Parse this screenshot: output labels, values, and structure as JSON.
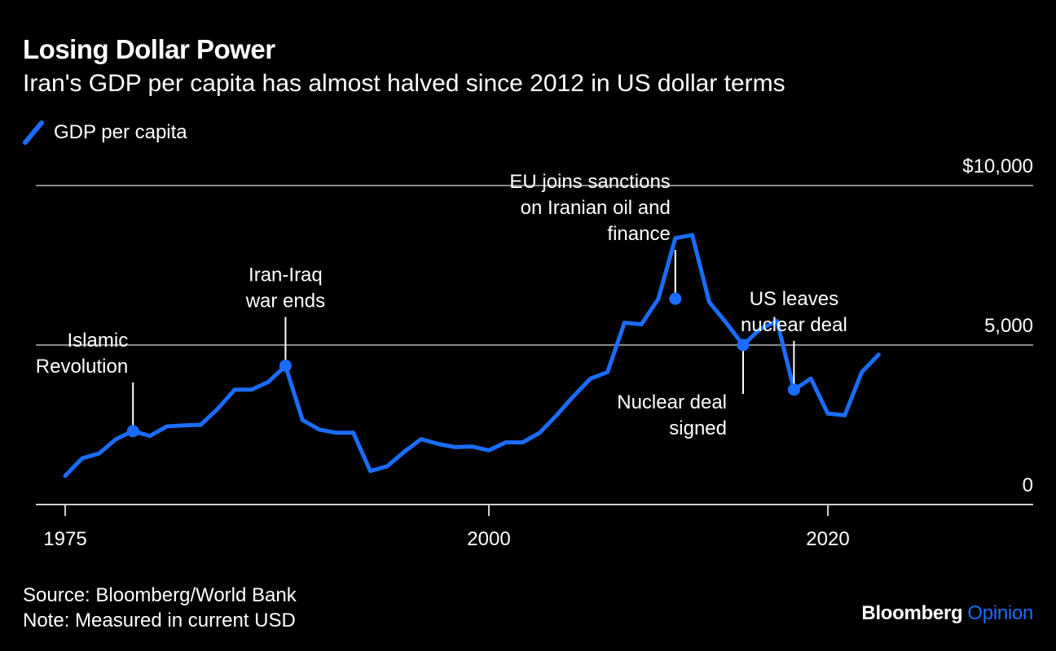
{
  "title": "Losing Dollar Power",
  "subtitle": "Iran's GDP per capita has almost halved since 2012 in US dollar terms",
  "legend": {
    "label": "GDP per capita",
    "color": "#1a6dff"
  },
  "source": "Source: Bloomberg/World Bank",
  "note": "Note: Measured in current USD",
  "brand": {
    "name": "Bloomberg",
    "suffix": "Opinion",
    "suffix_color": "#1a6dff"
  },
  "colors": {
    "background": "#000000",
    "line": "#1a6dff",
    "grid": "#8a8a8a",
    "text": "#ffffff"
  },
  "chart_data": {
    "type": "line",
    "title": "Losing Dollar Power",
    "subtitle": "Iran's GDP per capita has almost halved since 2012 in US dollar terms",
    "xlabel": "",
    "ylabel": "",
    "xlim": [
      1975,
      2031
    ],
    "ylim": [
      0,
      10000
    ],
    "x_ticks": [
      {
        "value": 1975,
        "label": "1975"
      },
      {
        "value": 2000,
        "label": "2000"
      },
      {
        "value": 2020,
        "label": "2020"
      }
    ],
    "y_ticks": [
      {
        "value": 10000,
        "label": "$10,000"
      },
      {
        "value": 5000,
        "label": "5,000"
      },
      {
        "value": 0,
        "label": "0"
      }
    ],
    "grid": "horizontal",
    "legend_position": "top-left",
    "series": [
      {
        "name": "GDP per capita",
        "color": "#1a6dff",
        "x": [
          1975,
          1976,
          1977,
          1978,
          1979,
          1980,
          1981,
          1982,
          1983,
          1984,
          1985,
          1986,
          1987,
          1988,
          1989,
          1990,
          1991,
          1992,
          1993,
          1994,
          1995,
          1996,
          1997,
          1998,
          1999,
          2000,
          2001,
          2002,
          2003,
          2004,
          2005,
          2006,
          2007,
          2008,
          2009,
          2010,
          2011,
          2012,
          2013,
          2014,
          2015,
          2016,
          2017,
          2018,
          2019,
          2020,
          2021,
          2022,
          2023
        ],
        "values": [
          900,
          1450,
          1600,
          2050,
          2300,
          2150,
          2450,
          2480,
          2500,
          3000,
          3600,
          3600,
          3850,
          4350,
          2650,
          2350,
          2250,
          2250,
          1050,
          1200,
          1650,
          2050,
          1900,
          1800,
          1820,
          1700,
          1950,
          1950,
          2250,
          2800,
          3400,
          3950,
          4150,
          5700,
          5650,
          6450,
          8350,
          8450,
          6350,
          5700,
          5000,
          5500,
          5750,
          3600,
          3950,
          2850,
          2800,
          4150,
          4700
        ]
      }
    ],
    "annotations": [
      {
        "text": "Islamic Revolution",
        "lines": [
          "Islamic",
          "Revolution"
        ],
        "x": 1979,
        "y": 2300,
        "position": "above-left"
      },
      {
        "text": "Iran-Iraq war ends",
        "lines": [
          "Iran-Iraq",
          "war ends"
        ],
        "x": 1988,
        "y": 4350,
        "position": "above"
      },
      {
        "text": "EU joins sanctions on Iranian oil and finance",
        "lines": [
          "EU joins sanctions",
          "on Iranian oil and",
          "finance"
        ],
        "x": 2011,
        "y": 6450,
        "position": "above-left"
      },
      {
        "text": "Nuclear deal signed",
        "lines": [
          "Nuclear deal",
          "signed"
        ],
        "x": 2015,
        "y": 5000,
        "position": "below-left"
      },
      {
        "text": "US leaves nuclear deal",
        "lines": [
          "US leaves",
          "nuclear deal"
        ],
        "x": 2018,
        "y": 3600,
        "position": "above"
      }
    ]
  }
}
